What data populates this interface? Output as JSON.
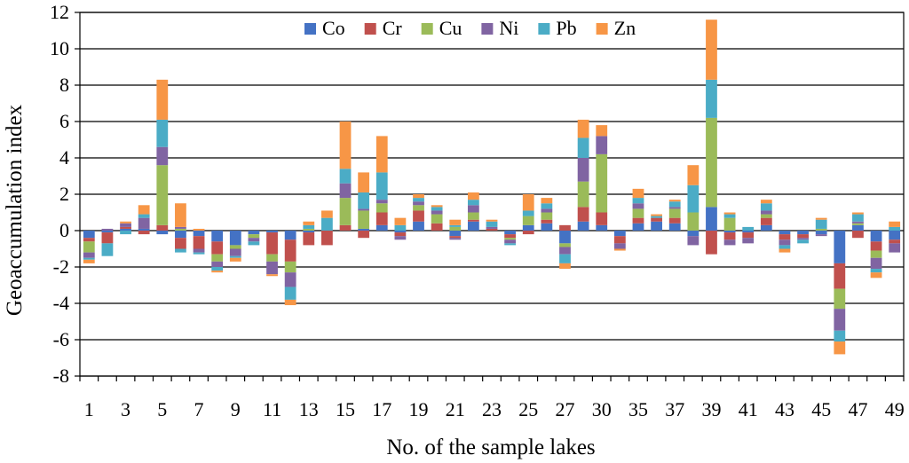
{
  "chart_data": {
    "type": "bar",
    "stacking": "positive-negative-stacked",
    "title": "",
    "xlabel": "No. of the sample lakes",
    "ylabel": "Geoaccumulation index",
    "ylim": [
      -8,
      12
    ],
    "yticks": [
      -8,
      -6,
      -4,
      -2,
      0,
      2,
      4,
      6,
      8,
      10,
      12
    ],
    "grid": true,
    "legend_position": "top-center",
    "categories": [
      "1",
      "2",
      "3",
      "4",
      "5",
      "6",
      "7",
      "8",
      "9",
      "10",
      "11",
      "12",
      "13",
      "14",
      "15",
      "16",
      "17",
      "18",
      "19",
      "20",
      "21",
      "22",
      "23",
      "24",
      "25",
      "26",
      "27",
      "28",
      "30",
      "33",
      "35",
      "36",
      "37",
      "38",
      "39",
      "40",
      "41",
      "42",
      "43",
      "44",
      "45",
      "46",
      "47",
      "48",
      "49"
    ],
    "xtick_labels": [
      "1",
      "3",
      "5",
      "7",
      "9",
      "11",
      "13",
      "15",
      "17",
      "19",
      "21",
      "23",
      "25",
      "27",
      "30",
      "35",
      "37",
      "39",
      "41",
      "43",
      "45",
      "47",
      "49"
    ],
    "series": [
      {
        "name": "Co",
        "color": "#4472C4",
        "values": [
          -0.4,
          -0.1,
          0.1,
          0.1,
          -0.2,
          -0.4,
          -0.3,
          -0.6,
          -0.8,
          -0.2,
          -0.1,
          -0.5,
          -0.1,
          0,
          0,
          0.1,
          0.3,
          -0.1,
          0.5,
          0,
          -0.3,
          0.5,
          0,
          -0.2,
          0.3,
          0.4,
          -0.7,
          0.5,
          0.3,
          -0.3,
          0.4,
          0.5,
          0.4,
          -0.3,
          1.3,
          -0.1,
          -0.1,
          0.3,
          -0.2,
          -0.2,
          -0.2,
          -1.8,
          0.3,
          -0.6,
          -0.5
        ]
      },
      {
        "name": "Cr",
        "color": "#C0504D",
        "values": [
          -0.2,
          -0.6,
          0.1,
          -0.2,
          0.3,
          -0.6,
          -0.7,
          -0.7,
          0,
          0,
          -1.2,
          -1.2,
          -0.7,
          -0.8,
          0.3,
          -0.4,
          0.7,
          -0.2,
          0.6,
          0.4,
          -0.1,
          0.1,
          0.1,
          -0.2,
          -0.2,
          0.2,
          0.3,
          0.8,
          0.7,
          -0.4,
          0.3,
          0.2,
          0.3,
          0,
          -1.3,
          -0.4,
          -0.3,
          0.4,
          -0.3,
          -0.2,
          0,
          -1.4,
          -0.4,
          -0.5,
          -0.2
        ]
      },
      {
        "name": "Cu",
        "color": "#9BBB59",
        "values": [
          -0.6,
          0,
          0,
          0,
          3.3,
          0.1,
          0,
          -0.4,
          -0.2,
          -0.2,
          -0.4,
          -0.6,
          0.1,
          0,
          1.5,
          1,
          0.5,
          0,
          0.3,
          0.5,
          0.2,
          0.4,
          0,
          -0.1,
          0.5,
          0.4,
          -0.2,
          1.4,
          3.2,
          0,
          0.5,
          0,
          0.5,
          1,
          4.9,
          0.7,
          0,
          0.2,
          0,
          0,
          0.1,
          -1.1,
          0.1,
          -0.4,
          0
        ]
      },
      {
        "name": "Ni",
        "color": "#8064A2",
        "values": [
          -0.3,
          0.1,
          0.2,
          0.6,
          1,
          0.1,
          -0.2,
          -0.3,
          -0.4,
          -0.2,
          -0.7,
          -0.8,
          0,
          0,
          0.8,
          0.1,
          0.2,
          -0.2,
          0.2,
          0.2,
          -0.1,
          0.4,
          0.1,
          -0.2,
          0,
          0.2,
          -0.4,
          1.3,
          1,
          -0.3,
          0.3,
          0,
          0.1,
          -0.5,
          0,
          -0.3,
          -0.3,
          0.2,
          -0.3,
          -0.1,
          -0.1,
          -1.2,
          0.1,
          -0.6,
          -0.5
        ]
      },
      {
        "name": "Pb",
        "color": "#4BACC6",
        "values": [
          -0.1,
          -0.7,
          -0.2,
          0.2,
          1.5,
          -0.2,
          -0.1,
          -0.2,
          -0.1,
          -0.2,
          0,
          -0.7,
          0.2,
          0.7,
          0.8,
          0.9,
          1.5,
          0.3,
          0.2,
          0.2,
          0.1,
          0.3,
          0.3,
          -0.1,
          0.3,
          0.3,
          -0.5,
          1.1,
          0,
          0,
          0.3,
          0.1,
          0.3,
          1.5,
          2.1,
          0.2,
          0.2,
          0.4,
          -0.2,
          -0.2,
          0.5,
          -0.6,
          0.4,
          -0.2,
          0.2
        ]
      },
      {
        "name": "Zn",
        "color": "#F79646",
        "values": [
          -0.2,
          0,
          0.1,
          0.5,
          2.2,
          1.3,
          0.1,
          -0.1,
          -0.2,
          0,
          -0.1,
          -0.3,
          0.2,
          0.4,
          2.6,
          1.1,
          2,
          0.4,
          0.2,
          0.1,
          0.3,
          0.4,
          0.1,
          0,
          0.9,
          0.3,
          -0.3,
          1,
          0.6,
          -0.1,
          0.5,
          0.1,
          0.1,
          1.1,
          3.3,
          0.1,
          0,
          0.2,
          -0.2,
          0,
          0.1,
          -0.7,
          0.1,
          -0.3,
          0.3
        ]
      }
    ]
  }
}
